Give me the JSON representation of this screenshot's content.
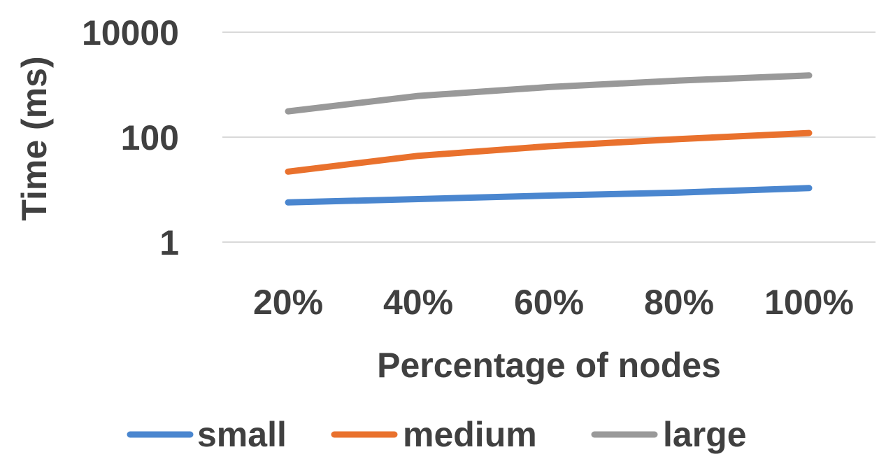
{
  "chart_data": {
    "type": "line",
    "yscale": "log",
    "ylabel": "Time (ms)",
    "xlabel": "Percentage of nodes",
    "categories": [
      "20%",
      "40%",
      "60%",
      "80%",
      "100%"
    ],
    "yticks": [
      "1",
      "100",
      "10000"
    ],
    "ylim": [
      1,
      10000
    ],
    "grid": true,
    "legend": "bottom",
    "series": [
      {
        "name": "small",
        "color": "#4A86CF",
        "values": [
          5.7,
          6.6,
          7.7,
          8.8,
          10.7
        ]
      },
      {
        "name": "medium",
        "color": "#E9712D",
        "values": [
          22,
          44,
          67,
          92,
          120
        ]
      },
      {
        "name": "large",
        "color": "#999999",
        "values": [
          310,
          610,
          900,
          1200,
          1500
        ]
      }
    ]
  }
}
